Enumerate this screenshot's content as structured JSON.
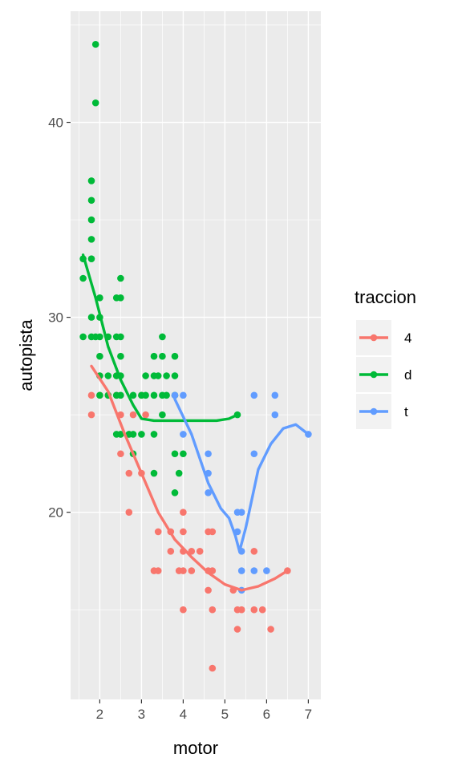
{
  "chart_data": {
    "type": "scatter",
    "xlabel": "motor",
    "ylabel": "autopista",
    "xlim": [
      1.3,
      7.3
    ],
    "ylim": [
      10.4,
      45.7
    ],
    "x_ticks": [
      2,
      3,
      4,
      5,
      6,
      7
    ],
    "y_ticks": [
      20,
      30,
      40
    ],
    "grid": true,
    "legend": {
      "title": "traccion",
      "placement": "right",
      "entries": [
        "4",
        "d",
        "t"
      ]
    },
    "series": [
      {
        "name": "4",
        "color": "#F8766D",
        "points": [
          [
            1.8,
            26
          ],
          [
            1.8,
            25
          ],
          [
            2,
            26
          ],
          [
            2,
            27
          ],
          [
            2.2,
            26
          ],
          [
            2.4,
            27
          ],
          [
            2.4,
            26
          ],
          [
            2.5,
            25
          ],
          [
            2.5,
            23
          ],
          [
            2.5,
            24
          ],
          [
            2.7,
            24
          ],
          [
            2.7,
            22
          ],
          [
            2.7,
            20
          ],
          [
            2.8,
            25
          ],
          [
            3,
            22
          ],
          [
            3,
            26
          ],
          [
            3.1,
            25
          ],
          [
            3.3,
            17
          ],
          [
            3.4,
            17
          ],
          [
            3.4,
            19
          ],
          [
            3.7,
            19
          ],
          [
            3.7,
            18
          ],
          [
            3.9,
            17
          ],
          [
            4,
            15
          ],
          [
            4,
            17
          ],
          [
            4,
            18
          ],
          [
            4,
            19
          ],
          [
            4,
            20
          ],
          [
            4.2,
            17
          ],
          [
            4.2,
            18
          ],
          [
            4.4,
            18
          ],
          [
            4.6,
            16
          ],
          [
            4.6,
            17
          ],
          [
            4.6,
            19
          ],
          [
            4.7,
            12
          ],
          [
            4.7,
            15
          ],
          [
            4.7,
            17
          ],
          [
            4.7,
            19
          ],
          [
            5.2,
            16
          ],
          [
            5.3,
            14
          ],
          [
            5.3,
            15
          ],
          [
            5.4,
            15
          ],
          [
            5.7,
            15
          ],
          [
            5.7,
            18
          ],
          [
            5.9,
            15
          ],
          [
            6.1,
            14
          ],
          [
            6.5,
            17
          ]
        ],
        "smooth": [
          [
            1.8,
            27.5
          ],
          [
            2.2,
            26.2
          ],
          [
            2.6,
            24
          ],
          [
            3,
            22
          ],
          [
            3.4,
            20
          ],
          [
            3.8,
            18.6
          ],
          [
            4.2,
            17.7
          ],
          [
            4.6,
            16.9
          ],
          [
            5,
            16.3
          ],
          [
            5.4,
            16
          ],
          [
            5.8,
            16.2
          ],
          [
            6.2,
            16.6
          ],
          [
            6.5,
            17
          ]
        ]
      },
      {
        "name": "d",
        "color": "#00BA38",
        "points": [
          [
            1.6,
            32
          ],
          [
            1.6,
            29
          ],
          [
            1.6,
            33
          ],
          [
            1.8,
            29
          ],
          [
            1.8,
            33
          ],
          [
            1.8,
            35
          ],
          [
            1.8,
            36
          ],
          [
            1.8,
            37
          ],
          [
            1.8,
            34
          ],
          [
            1.8,
            30
          ],
          [
            1.9,
            44
          ],
          [
            1.9,
            41
          ],
          [
            1.9,
            29
          ],
          [
            2,
            26
          ],
          [
            2,
            27
          ],
          [
            2,
            28
          ],
          [
            2,
            29
          ],
          [
            2,
            30
          ],
          [
            2,
            31
          ],
          [
            2.2,
            27
          ],
          [
            2.2,
            26
          ],
          [
            2.2,
            29
          ],
          [
            2.4,
            24
          ],
          [
            2.4,
            26
          ],
          [
            2.4,
            27
          ],
          [
            2.4,
            29
          ],
          [
            2.4,
            31
          ],
          [
            2.5,
            24
          ],
          [
            2.5,
            26
          ],
          [
            2.5,
            27
          ],
          [
            2.5,
            28
          ],
          [
            2.5,
            29
          ],
          [
            2.5,
            31
          ],
          [
            2.5,
            32
          ],
          [
            2.7,
            24
          ],
          [
            2.8,
            23
          ],
          [
            2.8,
            24
          ],
          [
            2.8,
            26
          ],
          [
            3,
            24
          ],
          [
            3,
            26
          ],
          [
            3.1,
            26
          ],
          [
            3.1,
            27
          ],
          [
            3.3,
            22
          ],
          [
            3.3,
            24
          ],
          [
            3.3,
            26
          ],
          [
            3.3,
            27
          ],
          [
            3.3,
            28
          ],
          [
            3.4,
            27
          ],
          [
            3.5,
            25
          ],
          [
            3.5,
            26
          ],
          [
            3.5,
            28
          ],
          [
            3.5,
            29
          ],
          [
            3.6,
            26
          ],
          [
            3.6,
            27
          ],
          [
            3.8,
            21
          ],
          [
            3.8,
            23
          ],
          [
            3.8,
            26
          ],
          [
            3.8,
            27
          ],
          [
            3.8,
            28
          ],
          [
            3.9,
            22
          ],
          [
            4,
            23
          ],
          [
            5.3,
            25
          ]
        ],
        "smooth": [
          [
            1.6,
            33.2
          ],
          [
            1.9,
            31
          ],
          [
            2.2,
            28.5
          ],
          [
            2.5,
            26.8
          ],
          [
            2.8,
            25.5
          ],
          [
            3,
            24.8
          ],
          [
            3.3,
            24.7
          ],
          [
            3.6,
            24.7
          ],
          [
            4,
            24.7
          ],
          [
            4.4,
            24.7
          ],
          [
            4.8,
            24.7
          ],
          [
            5.1,
            24.8
          ],
          [
            5.3,
            25
          ]
        ]
      },
      {
        "name": "t",
        "color": "#619CFF",
        "points": [
          [
            3.8,
            26
          ],
          [
            4,
            26
          ],
          [
            4,
            24
          ],
          [
            4.6,
            23
          ],
          [
            4.6,
            22
          ],
          [
            4.6,
            21
          ],
          [
            5.3,
            20
          ],
          [
            5.3,
            19
          ],
          [
            5.4,
            20
          ],
          [
            5.4,
            18
          ],
          [
            5.4,
            17
          ],
          [
            5.4,
            16
          ],
          [
            5.7,
            26
          ],
          [
            5.7,
            23
          ],
          [
            5.7,
            17
          ],
          [
            6,
            17
          ],
          [
            6.2,
            26
          ],
          [
            6.2,
            25
          ],
          [
            7,
            24
          ]
        ],
        "smooth": [
          [
            3.8,
            25.8
          ],
          [
            4.2,
            24
          ],
          [
            4.6,
            21.5
          ],
          [
            4.9,
            20.2
          ],
          [
            5.1,
            19.7
          ],
          [
            5.25,
            18.8
          ],
          [
            5.35,
            18
          ],
          [
            5.5,
            19.2
          ],
          [
            5.8,
            22.2
          ],
          [
            6.1,
            23.5
          ],
          [
            6.4,
            24.3
          ],
          [
            6.7,
            24.5
          ],
          [
            7,
            24
          ]
        ]
      }
    ]
  }
}
